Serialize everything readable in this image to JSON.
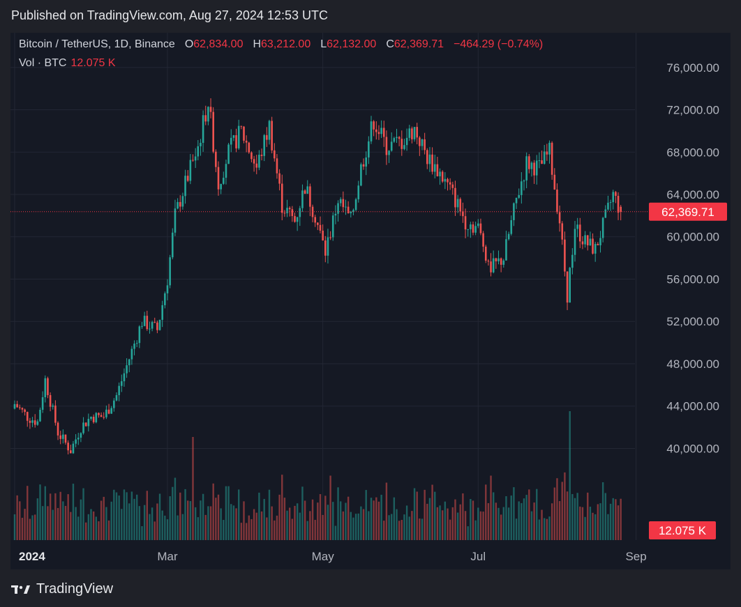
{
  "header": {
    "published": "Published on TradingView.com, Aug 27, 2024 12:53 UTC"
  },
  "legend": {
    "symbol": "Bitcoin / TetherUS, 1D, Binance",
    "o_label": "O",
    "o_value": "62,834.00",
    "h_label": "H",
    "h_value": "63,212.00",
    "l_label": "L",
    "l_value": "62,132.00",
    "c_label": "C",
    "c_value": "62,369.71",
    "change": "−464.29 (−0.74%)",
    "vol_label": "Vol · BTC",
    "vol_value": "12.075 K"
  },
  "footer": {
    "brand": "TradingView"
  },
  "colors": {
    "up": "#26a69a",
    "down": "#ef5350",
    "price_line": "#f23645",
    "background": "#151924",
    "grid": "#232734",
    "text": "#b2b5be"
  },
  "chart_data": {
    "type": "candlestick",
    "symbol": "BTC/USDT",
    "interval": "1D",
    "ylim": [
      37000,
      77500
    ],
    "y_ticks": [
      "76,000.00",
      "72,000.00",
      "68,000.00",
      "64,000.00",
      "60,000.00",
      "56,000.00",
      "52,000.00",
      "48,000.00",
      "44,000.00",
      "40,000.00"
    ],
    "y_tick_values": [
      76000,
      72000,
      68000,
      64000,
      60000,
      56000,
      52000,
      48000,
      44000,
      40000
    ],
    "x_ticks": [
      "2024",
      "Mar",
      "May",
      "Jul",
      "Sep"
    ],
    "x_tick_days": [
      0,
      60,
      121,
      182,
      244
    ],
    "last_price": 62369.71,
    "last_price_label": "62,369.71",
    "last_volume_label": "12.075 K",
    "close_series": [
      {
        "day": 0,
        "close": 44200
      },
      {
        "day": 5,
        "close": 43000
      },
      {
        "day": 9,
        "close": 42500
      },
      {
        "day": 12,
        "close": 46500
      },
      {
        "day": 17,
        "close": 41500
      },
      {
        "day": 22,
        "close": 39800
      },
      {
        "day": 26,
        "close": 42000
      },
      {
        "day": 30,
        "close": 43000
      },
      {
        "day": 35,
        "close": 43000
      },
      {
        "day": 40,
        "close": 45000
      },
      {
        "day": 45,
        "close": 48500
      },
      {
        "day": 50,
        "close": 52000
      },
      {
        "day": 56,
        "close": 51200
      },
      {
        "day": 60,
        "close": 56000
      },
      {
        "day": 63,
        "close": 62000
      },
      {
        "day": 67,
        "close": 65000
      },
      {
        "day": 72,
        "close": 68500
      },
      {
        "day": 76,
        "close": 72800
      },
      {
        "day": 80,
        "close": 65000
      },
      {
        "day": 84,
        "close": 68000
      },
      {
        "day": 89,
        "close": 70000
      },
      {
        "day": 95,
        "close": 66500
      },
      {
        "day": 100,
        "close": 70500
      },
      {
        "day": 105,
        "close": 63000
      },
      {
        "day": 110,
        "close": 61500
      },
      {
        "day": 114,
        "close": 64800
      },
      {
        "day": 118,
        "close": 62000
      },
      {
        "day": 122,
        "close": 58500
      },
      {
        "day": 127,
        "close": 63500
      },
      {
        "day": 132,
        "close": 61500
      },
      {
        "day": 136,
        "close": 66500
      },
      {
        "day": 141,
        "close": 71000
      },
      {
        "day": 146,
        "close": 68500
      },
      {
        "day": 152,
        "close": 69000
      },
      {
        "day": 157,
        "close": 70200
      },
      {
        "day": 162,
        "close": 67500
      },
      {
        "day": 167,
        "close": 66000
      },
      {
        "day": 172,
        "close": 64000
      },
      {
        "day": 177,
        "close": 61500
      },
      {
        "day": 182,
        "close": 60800
      },
      {
        "day": 187,
        "close": 57000
      },
      {
        "day": 192,
        "close": 58000
      },
      {
        "day": 197,
        "close": 63500
      },
      {
        "day": 201,
        "close": 67000
      },
      {
        "day": 206,
        "close": 66500
      },
      {
        "day": 210,
        "close": 68000
      },
      {
        "day": 214,
        "close": 61500
      },
      {
        "day": 217,
        "close": 54500
      },
      {
        "day": 220,
        "close": 61000
      },
      {
        "day": 224,
        "close": 59500
      },
      {
        "day": 228,
        "close": 58800
      },
      {
        "day": 231,
        "close": 61000
      },
      {
        "day": 235,
        "close": 64000
      },
      {
        "day": 238,
        "close": 62369.71
      }
    ],
    "volume_spikes": [
      {
        "day": 218,
        "volume_rel": 1.0
      },
      {
        "day": 70,
        "volume_rel": 0.8
      },
      {
        "day": 124,
        "volume_rel": 0.5
      },
      {
        "day": 187,
        "volume_rel": 0.5
      }
    ]
  }
}
